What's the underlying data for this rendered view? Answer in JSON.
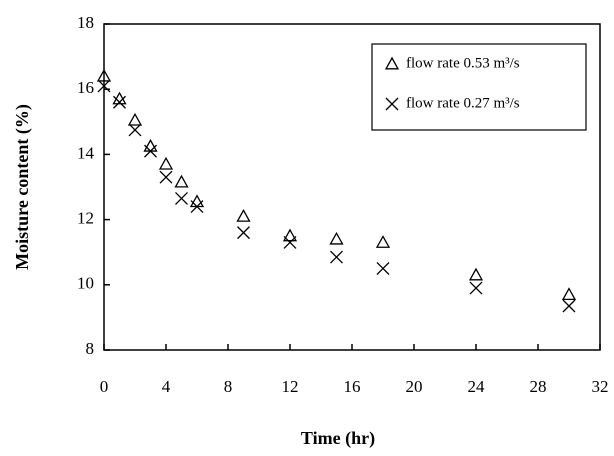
{
  "chart_data": {
    "type": "scatter",
    "x_label": "Time (hr)",
    "y_label": "Moisture content (%)",
    "xlim": [
      0,
      32
    ],
    "xticks": [
      0,
      4,
      8,
      12,
      16,
      20,
      24,
      28,
      32
    ],
    "ylim": [
      8,
      18
    ],
    "yticks": [
      8,
      10,
      12,
      14,
      16,
      18
    ],
    "series": [
      {
        "name": "flow rate 0.53 m³/s",
        "color": "#000000",
        "marker": "triangle",
        "x": [
          0,
          1,
          2,
          3,
          4,
          5,
          6,
          9,
          12,
          15,
          18,
          24,
          30
        ],
        "values": [
          16.4,
          15.7,
          15.05,
          14.25,
          13.7,
          13.15,
          12.55,
          12.1,
          11.5,
          11.4,
          11.3,
          10.3,
          9.7
        ]
      },
      {
        "name": "flow rate 0.27 m³/s",
        "color": "#000000",
        "marker": "x",
        "x": [
          0,
          1,
          2,
          3,
          4,
          5,
          6,
          9,
          12,
          15,
          18,
          24,
          30
        ],
        "values": [
          16.1,
          15.6,
          14.75,
          14.1,
          13.3,
          12.65,
          12.4,
          11.6,
          11.3,
          10.85,
          10.5,
          9.9,
          9.35
        ]
      }
    ]
  }
}
